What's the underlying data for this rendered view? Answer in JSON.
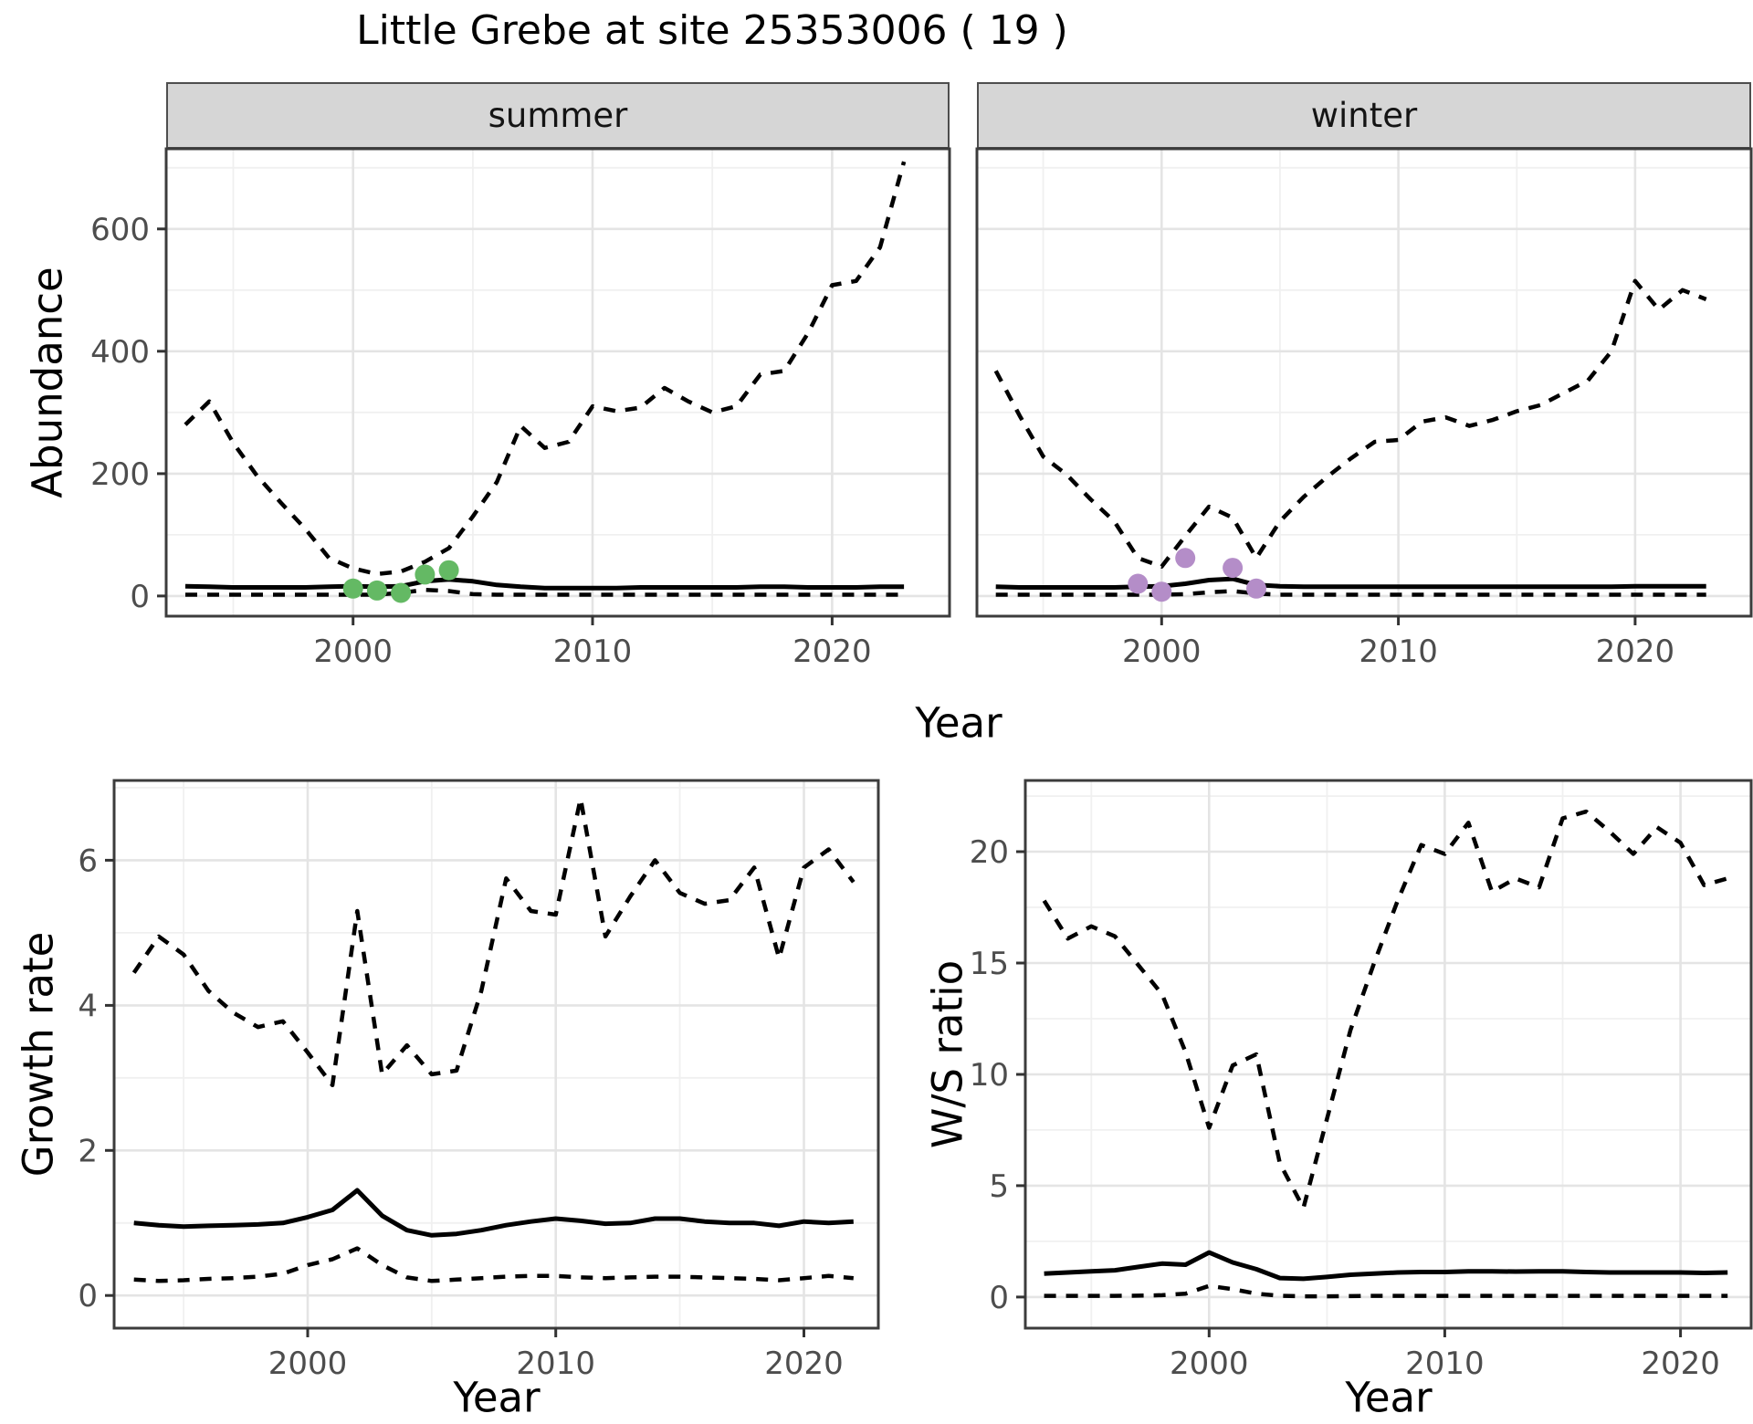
{
  "title": "Little Grebe at site 25353006 ( 19 )",
  "colors": {
    "line": "#000000",
    "grid_major": "#e4e4e4",
    "grid_minor": "#f0f0f0",
    "strip_background": "#d6d6d6",
    "panel_border": "#3c3c3c",
    "tick_mark": "#333333",
    "tick_text": "#4d4d4d",
    "observed_summer": "#64b964",
    "observed_winter": "#b48dc8"
  },
  "chart_data": [
    {
      "id": "abundance-summer",
      "type": "line",
      "facet_label": "summer",
      "ylabel": "Abundance",
      "xlabel": "Year",
      "xlim": [
        1992.2,
        2024.9
      ],
      "ylim": [
        -33,
        731
      ],
      "xticks": [
        2000,
        2010,
        2020
      ],
      "yticks": [
        0,
        200,
        400,
        600
      ],
      "xminor": [
        1995,
        2005,
        2015
      ],
      "yminor": [
        100,
        300,
        500,
        700
      ],
      "show_y_axis": true,
      "grid": true,
      "legend": "none",
      "x": [
        1993,
        1994,
        1995,
        1996,
        1997,
        1998,
        1999,
        2000,
        2001,
        2002,
        2003,
        2004,
        2005,
        2006,
        2007,
        2008,
        2009,
        2010,
        2011,
        2012,
        2013,
        2014,
        2015,
        2016,
        2017,
        2018,
        2019,
        2020,
        2021,
        2022,
        2023
      ],
      "series": [
        {
          "name": "upper-95ci",
          "style": "dashed",
          "values": [
            280,
            318,
            250,
            196,
            152,
            110,
            62,
            45,
            36,
            40,
            56,
            78,
            130,
            186,
            278,
            242,
            252,
            310,
            302,
            308,
            340,
            318,
            300,
            310,
            362,
            368,
            430,
            508,
            515,
            570,
            710
          ]
        },
        {
          "name": "mean",
          "style": "solid",
          "values": [
            16,
            15,
            14,
            14,
            14,
            14,
            15,
            16,
            15,
            16,
            24,
            27,
            24,
            18,
            15,
            13,
            13,
            13,
            13,
            14,
            14,
            14,
            14,
            14,
            15,
            15,
            14,
            14,
            14,
            15,
            15
          ]
        },
        {
          "name": "lower-95ci",
          "style": "dashed",
          "values": [
            2,
            2,
            2,
            2,
            2,
            2,
            2,
            2,
            2,
            5,
            10,
            8,
            3,
            2,
            2,
            2,
            2,
            2,
            2,
            2,
            2,
            2,
            2,
            2,
            2,
            2,
            2,
            2,
            2,
            2,
            2
          ]
        }
      ],
      "points": {
        "name": "observed-counts",
        "color": "#64b964",
        "x": [
          2000,
          2001,
          2002,
          2003,
          2004
        ],
        "y": [
          12,
          9,
          5,
          35,
          42
        ]
      }
    },
    {
      "id": "abundance-winter",
      "type": "line",
      "facet_label": "winter",
      "ylabel": "Abundance",
      "xlabel": "Year",
      "xlim": [
        1992.2,
        2024.9
      ],
      "ylim": [
        -33,
        731
      ],
      "xticks": [
        2000,
        2010,
        2020
      ],
      "yticks": [
        0,
        200,
        400,
        600
      ],
      "xminor": [
        1995,
        2005,
        2015
      ],
      "yminor": [
        100,
        300,
        500,
        700
      ],
      "show_y_axis": false,
      "grid": true,
      "legend": "none",
      "x": [
        1993,
        1994,
        1995,
        1996,
        1997,
        1998,
        1999,
        2000,
        2001,
        2002,
        2003,
        2004,
        2005,
        2006,
        2007,
        2008,
        2009,
        2010,
        2011,
        2012,
        2013,
        2014,
        2015,
        2016,
        2017,
        2018,
        2019,
        2020,
        2021,
        2022,
        2023
      ],
      "series": [
        {
          "name": "upper-95ci",
          "style": "dashed",
          "values": [
            368,
            295,
            228,
            198,
            158,
            122,
            62,
            48,
            98,
            146,
            128,
            62,
            122,
            162,
            195,
            225,
            252,
            255,
            285,
            292,
            278,
            288,
            302,
            312,
            332,
            352,
            400,
            515,
            468,
            500,
            485
          ]
        },
        {
          "name": "mean",
          "style": "solid",
          "values": [
            15,
            14,
            14,
            14,
            14,
            14,
            15,
            16,
            20,
            26,
            28,
            18,
            16,
            15,
            15,
            15,
            15,
            15,
            15,
            15,
            15,
            15,
            15,
            15,
            15,
            15,
            15,
            16,
            16,
            16,
            16
          ]
        },
        {
          "name": "lower-95ci",
          "style": "dashed",
          "values": [
            2,
            2,
            2,
            2,
            2,
            2,
            2,
            2,
            3,
            6,
            8,
            4,
            2,
            2,
            2,
            2,
            2,
            2,
            2,
            2,
            2,
            2,
            2,
            2,
            2,
            2,
            2,
            2,
            2,
            2,
            2
          ]
        }
      ],
      "points": {
        "name": "observed-counts",
        "color": "#b48dc8",
        "x": [
          1999,
          2000,
          2001,
          2003,
          2004
        ],
        "y": [
          20,
          7,
          62,
          46,
          12
        ]
      }
    },
    {
      "id": "growth-rate",
      "type": "line",
      "facet_label": "",
      "ylabel": "Growth rate",
      "xlabel": "Year",
      "xlim": [
        1992.2,
        2023.0
      ],
      "ylim": [
        -0.45,
        7.1
      ],
      "xticks": [
        2000,
        2010,
        2020
      ],
      "yticks": [
        0,
        2,
        4,
        6
      ],
      "xminor": [
        1995,
        2005,
        2015
      ],
      "yminor": [
        1,
        3,
        5,
        7
      ],
      "show_y_axis": true,
      "grid": true,
      "legend": "none",
      "x": [
        1993,
        1994,
        1995,
        1996,
        1997,
        1998,
        1999,
        2000,
        2001,
        2002,
        2003,
        2004,
        2005,
        2006,
        2007,
        2008,
        2009,
        2010,
        2011,
        2012,
        2013,
        2014,
        2015,
        2016,
        2017,
        2018,
        2019,
        2020,
        2021,
        2022
      ],
      "series": [
        {
          "name": "upper-95ci",
          "style": "dashed",
          "values": [
            4.45,
            4.95,
            4.7,
            4.2,
            3.9,
            3.7,
            3.78,
            3.35,
            2.9,
            5.3,
            3.05,
            3.45,
            3.05,
            3.1,
            4.2,
            5.75,
            5.3,
            5.25,
            6.85,
            4.95,
            5.5,
            6.0,
            5.55,
            5.4,
            5.45,
            5.9,
            4.65,
            5.9,
            6.15,
            5.7
          ]
        },
        {
          "name": "mean",
          "style": "solid",
          "values": [
            1.0,
            0.97,
            0.95,
            0.96,
            0.97,
            0.98,
            1.0,
            1.08,
            1.18,
            1.45,
            1.1,
            0.9,
            0.83,
            0.85,
            0.9,
            0.97,
            1.02,
            1.06,
            1.03,
            0.99,
            1.0,
            1.06,
            1.06,
            1.02,
            1.0,
            1.0,
            0.96,
            1.02,
            1.0,
            1.02
          ]
        },
        {
          "name": "lower-95ci",
          "style": "dashed",
          "values": [
            0.22,
            0.2,
            0.21,
            0.23,
            0.24,
            0.26,
            0.3,
            0.42,
            0.5,
            0.65,
            0.42,
            0.25,
            0.2,
            0.22,
            0.24,
            0.26,
            0.27,
            0.27,
            0.25,
            0.24,
            0.25,
            0.26,
            0.26,
            0.25,
            0.24,
            0.23,
            0.21,
            0.24,
            0.27,
            0.24
          ]
        }
      ],
      "points": null
    },
    {
      "id": "ws-ratio",
      "type": "line",
      "facet_label": "",
      "ylabel": "W/S ratio",
      "xlabel": "Year",
      "xlim": [
        1992.2,
        2023.0
      ],
      "ylim": [
        -1.4,
        23.2
      ],
      "xticks": [
        2000,
        2010,
        2020
      ],
      "yticks": [
        0,
        5,
        10,
        15,
        20
      ],
      "xminor": [
        1995,
        2005,
        2015
      ],
      "yminor": [
        2.5,
        7.5,
        12.5,
        17.5,
        22.5
      ],
      "show_y_axis": true,
      "grid": true,
      "legend": "none",
      "x": [
        1993,
        1994,
        1995,
        1996,
        1997,
        1998,
        1999,
        2000,
        2001,
        2002,
        2003,
        2004,
        2005,
        2006,
        2007,
        2008,
        2009,
        2010,
        2011,
        2012,
        2013,
        2014,
        2015,
        2016,
        2017,
        2018,
        2019,
        2020,
        2021,
        2022
      ],
      "series": [
        {
          "name": "upper-95ci",
          "style": "dashed",
          "values": [
            17.8,
            16.1,
            16.65,
            16.2,
            14.9,
            13.6,
            11.0,
            7.6,
            10.4,
            10.9,
            6.0,
            4.0,
            8.0,
            12.0,
            15.0,
            17.8,
            20.3,
            19.9,
            21.3,
            18.2,
            18.8,
            18.4,
            21.5,
            21.8,
            20.9,
            19.9,
            21.1,
            20.4,
            18.5,
            18.8
          ]
        },
        {
          "name": "mean",
          "style": "solid",
          "values": [
            1.05,
            1.1,
            1.15,
            1.2,
            1.35,
            1.5,
            1.45,
            2.0,
            1.55,
            1.25,
            0.85,
            0.82,
            0.9,
            1.0,
            1.05,
            1.1,
            1.12,
            1.12,
            1.15,
            1.15,
            1.14,
            1.15,
            1.15,
            1.12,
            1.1,
            1.1,
            1.1,
            1.1,
            1.08,
            1.1
          ]
        },
        {
          "name": "lower-95ci",
          "style": "dashed",
          "values": [
            0.05,
            0.05,
            0.05,
            0.05,
            0.06,
            0.08,
            0.15,
            0.5,
            0.35,
            0.15,
            0.05,
            0.03,
            0.03,
            0.04,
            0.05,
            0.05,
            0.05,
            0.05,
            0.05,
            0.05,
            0.05,
            0.05,
            0.05,
            0.05,
            0.05,
            0.05,
            0.05,
            0.05,
            0.05,
            0.05
          ]
        }
      ],
      "points": null
    }
  ]
}
